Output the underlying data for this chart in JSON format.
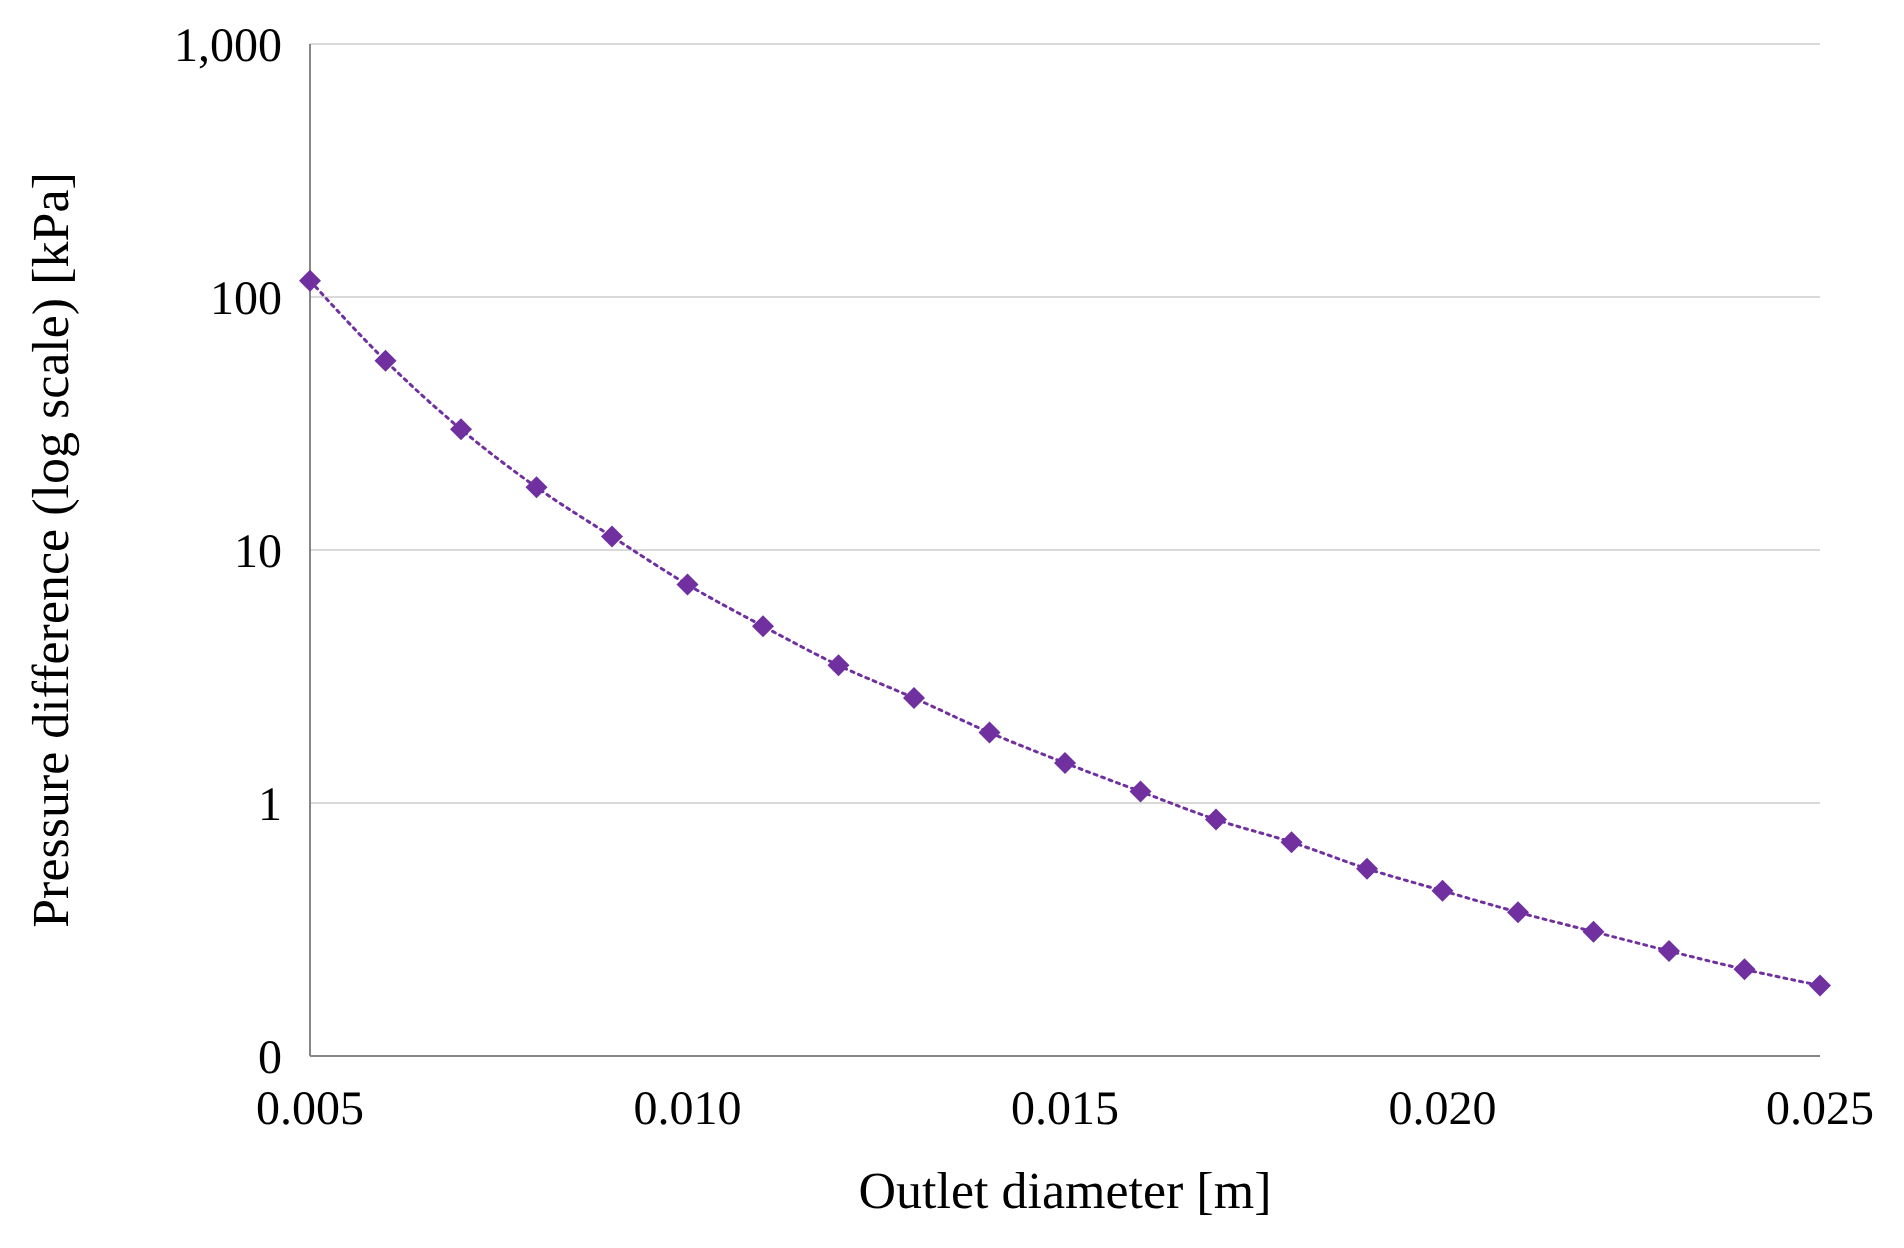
{
  "chart_data": {
    "type": "line",
    "xlabel": "Outlet diameter [m]",
    "ylabel": "Pressure difference (log scale) [kPa]",
    "x": [
      0.005,
      0.006,
      0.007,
      0.008,
      0.009,
      0.01,
      0.011,
      0.012,
      0.013,
      0.014,
      0.015,
      0.016,
      0.017,
      0.018,
      0.019,
      0.02,
      0.021,
      0.022,
      0.023,
      0.024,
      0.025
    ],
    "series": [
      {
        "color": "#7030a0",
        "values": [
          116,
          56,
          30,
          17.7,
          11.3,
          7.3,
          5.0,
          3.5,
          2.6,
          1.9,
          1.44,
          1.11,
          0.86,
          0.7,
          0.55,
          0.45,
          0.37,
          0.31,
          0.26,
          0.22,
          0.19
        ]
      }
    ],
    "xlim": [
      0.005,
      0.025
    ],
    "xticks": [
      {
        "value": 0.005,
        "label": "0.005"
      },
      {
        "value": 0.01,
        "label": "0.010"
      },
      {
        "value": 0.015,
        "label": "0.015"
      },
      {
        "value": 0.02,
        "label": "0.020"
      },
      {
        "value": 0.025,
        "label": "0.025"
      }
    ],
    "ylim": [
      0.1,
      1000
    ],
    "yticks": [
      {
        "value": 0.1,
        "label": "0"
      },
      1,
      10,
      100,
      {
        "value": 1000,
        "label": "1,000"
      }
    ],
    "log": "y",
    "grid": "y",
    "marker": "diamond",
    "line_style": "dotted"
  }
}
